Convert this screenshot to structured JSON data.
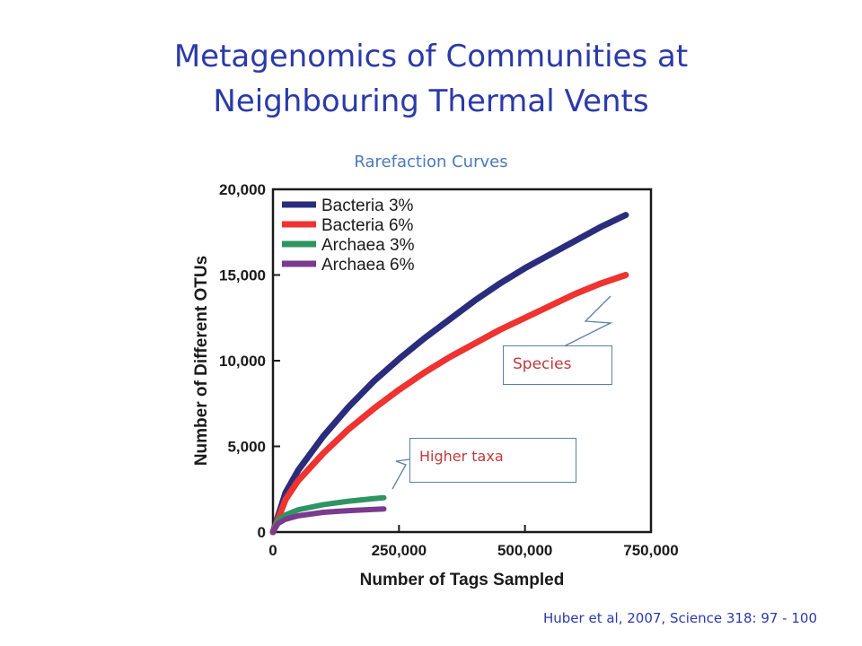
{
  "slide": {
    "title_line1": "Metagenomics of Communities at",
    "title_line2": "Neighbouring Thermal Vents",
    "subtitle": "Rarefaction Curves",
    "citation": "Huber et al, 2007, Science 318: 97 - 100",
    "callout_species": "Species",
    "callout_higher": "Higher taxa",
    "callout_species_color": "#c0393b",
    "callout_higher_color": "#c0393b"
  },
  "chart_data": {
    "type": "line",
    "xlabel": "Number of Tags Sampled",
    "ylabel": "Number of Different OTUs",
    "xlim": [
      0,
      750000
    ],
    "ylim": [
      0,
      20000
    ],
    "xticks": [
      "0",
      "250,000",
      "500,000",
      "750,000"
    ],
    "yticks": [
      "0",
      "5,000",
      "10,000",
      "15,000",
      "20,000"
    ],
    "legend_position": "top-left",
    "series": [
      {
        "name": "Bacteria 3%",
        "color": "#2a2d7c",
        "x": [
          0,
          25000,
          50000,
          100000,
          150000,
          200000,
          250000,
          300000,
          350000,
          400000,
          450000,
          500000,
          550000,
          600000,
          650000,
          700000
        ],
        "y": [
          0,
          2300,
          3600,
          5600,
          7300,
          8800,
          10100,
          11300,
          12400,
          13500,
          14500,
          15400,
          16200,
          17000,
          17800,
          18500
        ]
      },
      {
        "name": "Bacteria 6%",
        "color": "#ee3330",
        "x": [
          0,
          25000,
          50000,
          100000,
          150000,
          200000,
          250000,
          300000,
          350000,
          400000,
          450000,
          500000,
          550000,
          600000,
          650000,
          700000
        ],
        "y": [
          0,
          1900,
          3000,
          4600,
          6000,
          7200,
          8300,
          9300,
          10200,
          11000,
          11800,
          12500,
          13200,
          13900,
          14500,
          15000
        ]
      },
      {
        "name": "Archaea 3%",
        "color": "#2e9562",
        "x": [
          0,
          10000,
          25000,
          50000,
          100000,
          150000,
          200000,
          220000
        ],
        "y": [
          0,
          700,
          1000,
          1300,
          1600,
          1800,
          1950,
          2000
        ]
      },
      {
        "name": "Archaea 6%",
        "color": "#7a3a8e",
        "x": [
          0,
          10000,
          25000,
          50000,
          100000,
          150000,
          200000,
          220000
        ],
        "y": [
          0,
          500,
          750,
          950,
          1150,
          1250,
          1320,
          1350
        ]
      }
    ]
  }
}
